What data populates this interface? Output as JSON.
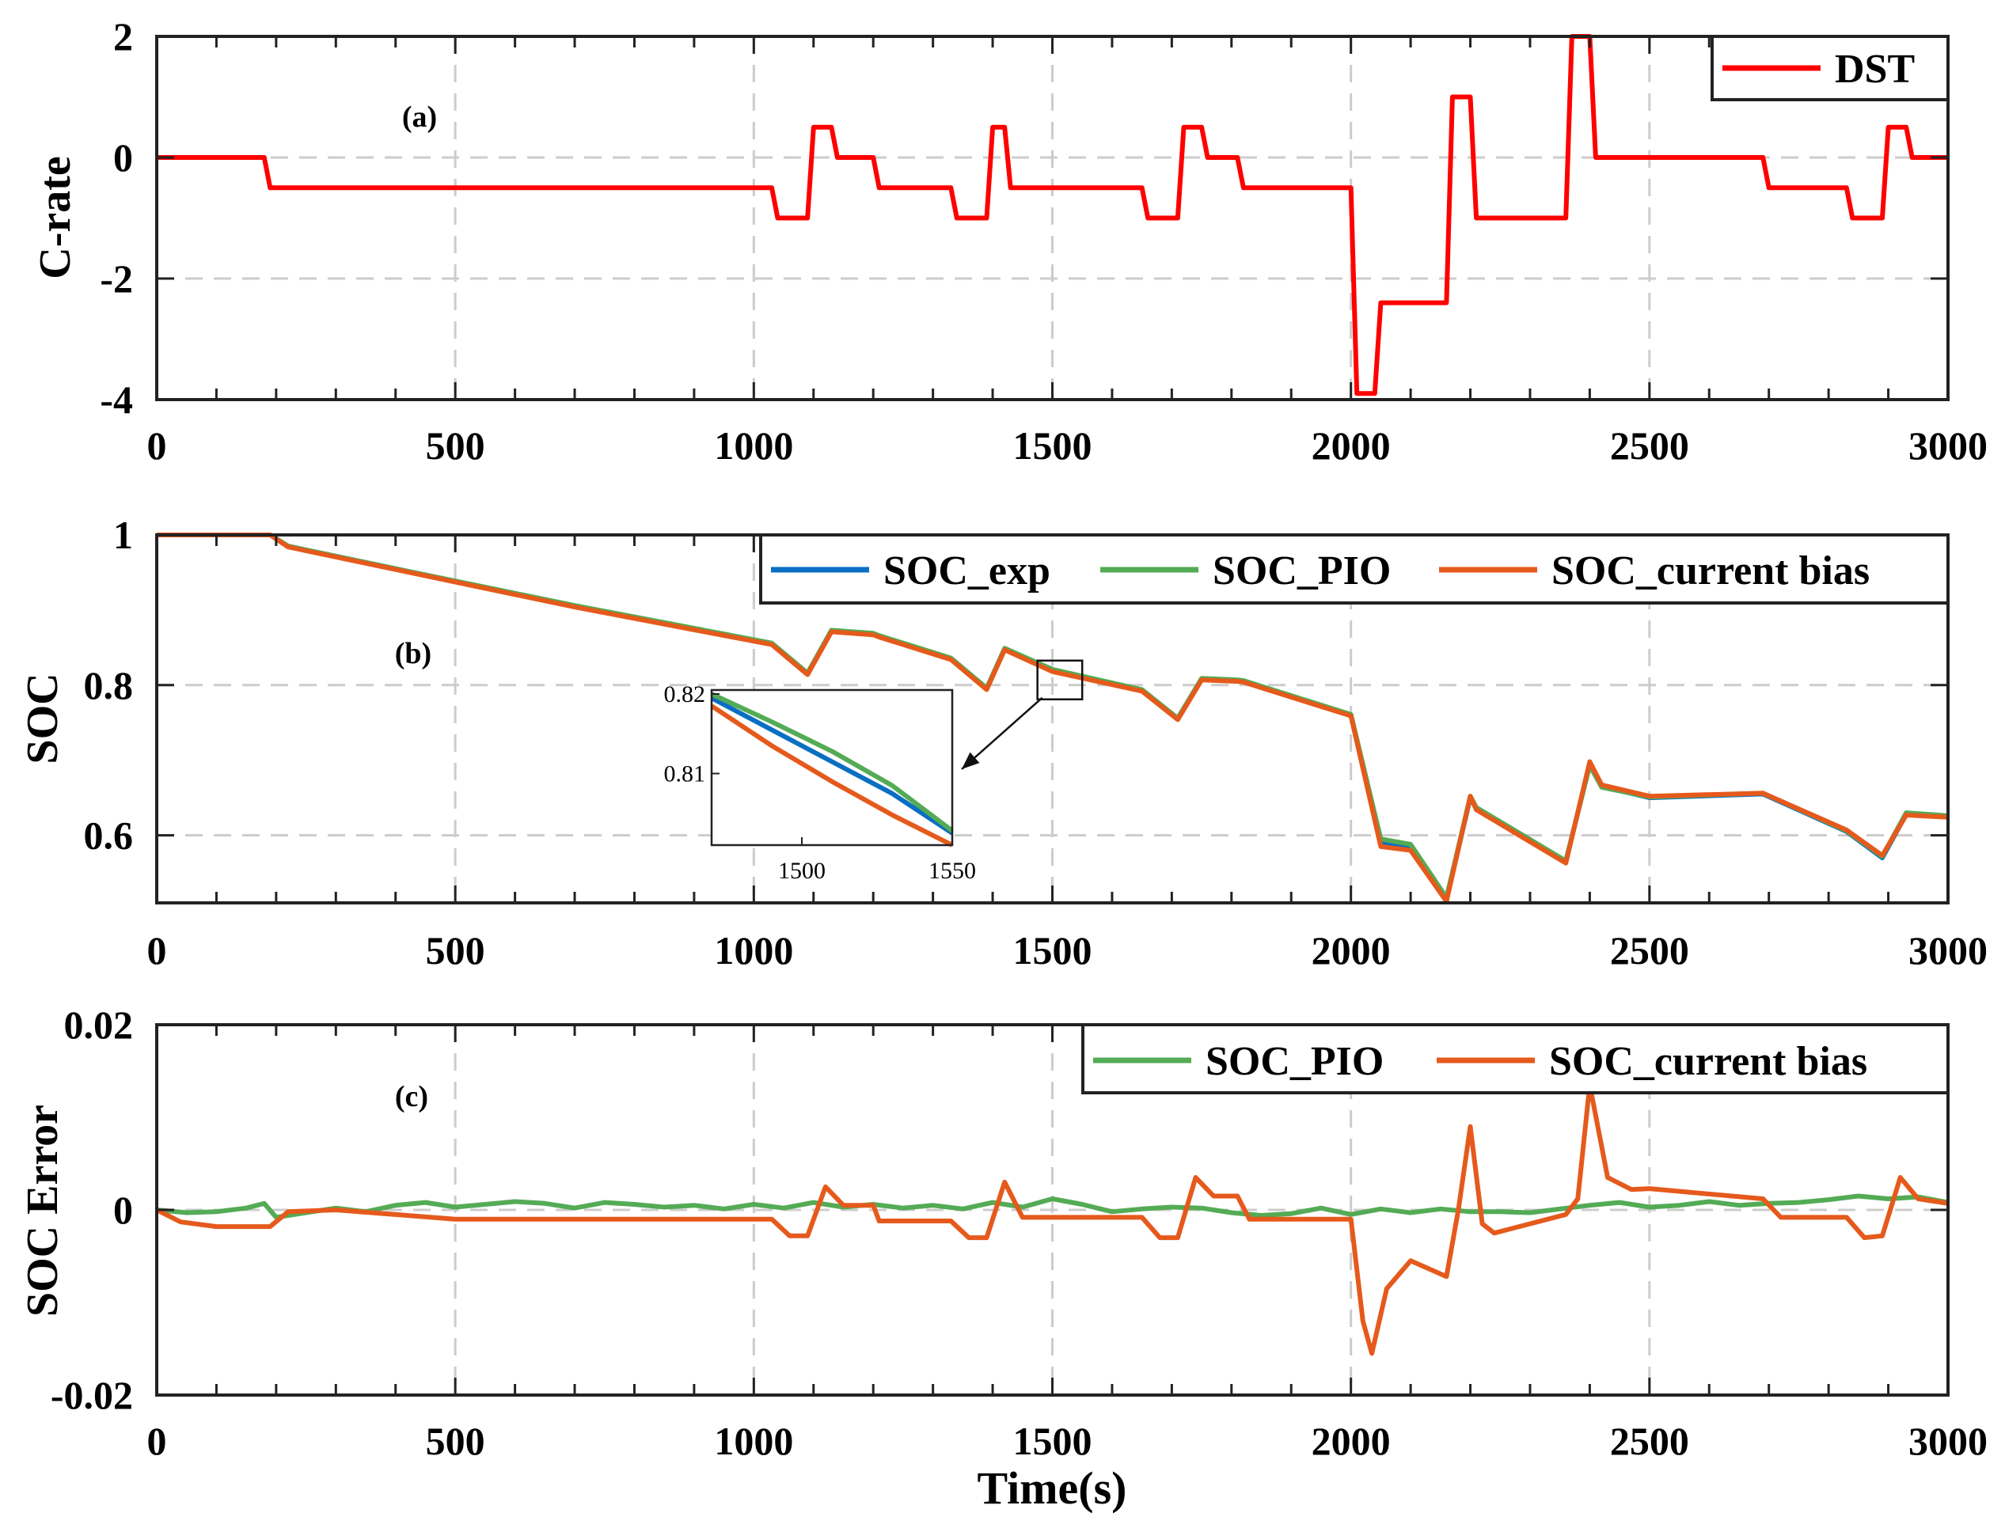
{
  "colors": {
    "dst": "#ff0000",
    "exp": "#0a6fc2",
    "pio": "#54ab55",
    "bias": "#e55a1c",
    "grid": "#cccccc",
    "axis": "#222222"
  },
  "chart_data": [
    {
      "type": "line",
      "panel_label": "(a)",
      "ylabel": "C-rate",
      "xlabel": "",
      "xlim": [
        0,
        3000
      ],
      "ylim": [
        -4,
        2
      ],
      "xticks": [
        0,
        500,
        1000,
        1500,
        2000,
        2500,
        3000
      ],
      "yticks": [
        -4,
        -2,
        0,
        2
      ],
      "xtick_labels": [
        "0",
        "500",
        "1000",
        "1500",
        "2000",
        "2500",
        "3000"
      ],
      "ytick_labels": [
        "-4",
        "-2",
        "0",
        "2"
      ],
      "grid": true,
      "legend_position": "top-right",
      "series": [
        {
          "name": "DST",
          "color": "#ff0000",
          "x": [
            0,
            180,
            190,
            1030,
            1040,
            1090,
            1100,
            1130,
            1140,
            1200,
            1210,
            1330,
            1340,
            1390,
            1400,
            1420,
            1430,
            1650,
            1660,
            1710,
            1720,
            1750,
            1760,
            1810,
            1820,
            2000,
            2010,
            2040,
            2050,
            2160,
            2170,
            2200,
            2210,
            2360,
            2370,
            2400,
            2410,
            2690,
            2700,
            2830,
            2840,
            2890,
            2900,
            2930,
            2940,
            3000
          ],
          "y": [
            0,
            0,
            -0.5,
            -0.5,
            -1,
            -1,
            0.5,
            0.5,
            0,
            0,
            -0.5,
            -0.5,
            -1,
            -1,
            0.5,
            0.5,
            -0.5,
            -0.5,
            -1,
            -1,
            0.5,
            0.5,
            0,
            0,
            -0.5,
            -0.5,
            -3.9,
            -3.9,
            -2.4,
            -2.4,
            1,
            1,
            -1,
            -1,
            2,
            2,
            0,
            0,
            -0.5,
            -0.5,
            -1,
            -1,
            0.5,
            0.5,
            0,
            0
          ]
        }
      ]
    },
    {
      "type": "line",
      "panel_label": "(b)",
      "ylabel": "SOC",
      "xlabel": "",
      "xlim": [
        0,
        3000
      ],
      "ylim": [
        0.51,
        1
      ],
      "xticks": [
        0,
        500,
        1000,
        1500,
        2000,
        2500,
        3000
      ],
      "yticks": [
        0.6,
        0.8,
        1
      ],
      "xtick_labels": [
        "0",
        "500",
        "1000",
        "1500",
        "2000",
        "2500",
        "3000"
      ],
      "ytick_labels": [
        "0.6",
        "0.8",
        "1"
      ],
      "grid": true,
      "legend_position": "top-right",
      "series": [
        {
          "name": "SOC_exp",
          "color": "#0a6fc2",
          "x": [
            0,
            190,
            220,
            400,
            700,
            1030,
            1090,
            1130,
            1200,
            1210,
            1330,
            1390,
            1420,
            1500,
            1650,
            1710,
            1750,
            1810,
            1820,
            2000,
            2050,
            2100,
            2160,
            2200,
            2210,
            2360,
            2400,
            2420,
            2500,
            2690,
            2830,
            2890,
            2930,
            3000
          ],
          "y": [
            1,
            1,
            0.985,
            0.955,
            0.905,
            0.855,
            0.815,
            0.872,
            0.868,
            0.865,
            0.835,
            0.795,
            0.848,
            0.82,
            0.793,
            0.755,
            0.808,
            0.806,
            0.805,
            0.76,
            0.59,
            0.585,
            0.515,
            0.65,
            0.635,
            0.565,
            0.695,
            0.665,
            0.65,
            0.655,
            0.605,
            0.57,
            0.628,
            0.625
          ]
        },
        {
          "name": "SOC_PIO",
          "color": "#54ab55",
          "x": [
            0,
            190,
            220,
            400,
            700,
            1030,
            1090,
            1130,
            1200,
            1210,
            1330,
            1390,
            1420,
            1500,
            1650,
            1710,
            1750,
            1810,
            1820,
            2000,
            2050,
            2100,
            2160,
            2200,
            2210,
            2360,
            2400,
            2420,
            2500,
            2690,
            2830,
            2890,
            2930,
            3000
          ],
          "y": [
            1,
            1,
            0.985,
            0.955,
            0.906,
            0.856,
            0.816,
            0.873,
            0.869,
            0.866,
            0.836,
            0.796,
            0.849,
            0.821,
            0.794,
            0.756,
            0.809,
            0.807,
            0.806,
            0.761,
            0.595,
            0.588,
            0.517,
            0.652,
            0.637,
            0.566,
            0.693,
            0.664,
            0.651,
            0.656,
            0.606,
            0.572,
            0.63,
            0.626
          ]
        },
        {
          "name": "SOC_current bias",
          "color": "#e55a1c",
          "x": [
            0,
            190,
            220,
            400,
            700,
            1030,
            1090,
            1130,
            1200,
            1210,
            1330,
            1390,
            1420,
            1500,
            1650,
            1710,
            1750,
            1810,
            1820,
            2000,
            2050,
            2100,
            2160,
            2200,
            2210,
            2360,
            2400,
            2420,
            2500,
            2690,
            2830,
            2890,
            2930,
            3000
          ],
          "y": [
            1,
            1,
            0.984,
            0.954,
            0.904,
            0.854,
            0.814,
            0.871,
            0.867,
            0.864,
            0.834,
            0.794,
            0.847,
            0.818,
            0.792,
            0.754,
            0.807,
            0.805,
            0.804,
            0.759,
            0.585,
            0.58,
            0.512,
            0.652,
            0.634,
            0.563,
            0.698,
            0.667,
            0.652,
            0.656,
            0.607,
            0.573,
            0.627,
            0.624
          ]
        }
      ],
      "inset": {
        "xlim": [
          1470,
          1550
        ],
        "ylim": [
          0.801,
          0.8205
        ],
        "xticks": [
          1500,
          1550
        ],
        "yticks": [
          0.81,
          0.82
        ],
        "xtick_labels": [
          "1500",
          "1550"
        ],
        "ytick_labels": [
          "0.81",
          "0.82"
        ],
        "zoom_box_x": [
          1475,
          1550
        ],
        "zoom_box_y": [
          0.8,
          0.82
        ],
        "series": [
          {
            "name": "SOC_exp",
            "color": "#0a6fc2",
            "x": [
              1470,
              1490,
              1510,
              1530,
              1550
            ],
            "y": [
              0.8195,
              0.8155,
              0.8115,
              0.8075,
              0.8025
            ]
          },
          {
            "name": "SOC_PIO",
            "color": "#54ab55",
            "x": [
              1470,
              1490,
              1510,
              1530,
              1550
            ],
            "y": [
              0.82,
              0.8165,
              0.8128,
              0.8085,
              0.8028
            ]
          },
          {
            "name": "SOC_current bias",
            "color": "#e55a1c",
            "x": [
              1470,
              1490,
              1510,
              1530,
              1550
            ],
            "y": [
              0.8185,
              0.8135,
              0.809,
              0.8048,
              0.801
            ]
          }
        ]
      }
    },
    {
      "type": "line",
      "panel_label": "(c)",
      "ylabel": "SOC Error",
      "xlabel": "Time(s)",
      "xlim": [
        0,
        3000
      ],
      "ylim": [
        -0.02,
        0.02
      ],
      "xticks": [
        0,
        500,
        1000,
        1500,
        2000,
        2500,
        3000
      ],
      "yticks": [
        -0.02,
        0,
        0.02
      ],
      "xtick_labels": [
        "0",
        "500",
        "1000",
        "1500",
        "2000",
        "2500",
        "3000"
      ],
      "ytick_labels": [
        "-0.02",
        "0",
        "0.02"
      ],
      "grid": true,
      "legend_position": "top-right",
      "series": [
        {
          "name": "SOC_PIO",
          "color": "#54ab55",
          "x": [
            0,
            50,
            100,
            150,
            180,
            200,
            250,
            300,
            350,
            400,
            450,
            500,
            550,
            600,
            650,
            700,
            750,
            800,
            850,
            900,
            950,
            1000,
            1050,
            1100,
            1150,
            1200,
            1250,
            1300,
            1350,
            1400,
            1450,
            1500,
            1550,
            1600,
            1650,
            1700,
            1750,
            1800,
            1850,
            1900,
            1950,
            2000,
            2050,
            2100,
            2150,
            2200,
            2250,
            2300,
            2350,
            2400,
            2450,
            2500,
            2550,
            2600,
            2650,
            2700,
            2750,
            2800,
            2850,
            2900,
            2950,
            3000
          ],
          "y": [
            0,
            -0.0003,
            -0.0002,
            0.0002,
            0.0007,
            -0.0008,
            -0.0003,
            0.0002,
            -0.0002,
            0.0005,
            0.0008,
            0.0003,
            0.0006,
            0.0009,
            0.0007,
            0.0002,
            0.0008,
            0.0006,
            0.0003,
            0.0005,
            0.0001,
            0.0006,
            0.0002,
            0.0008,
            0.0003,
            0.0006,
            0.0002,
            0.0005,
            0.0001,
            0.0008,
            0.0003,
            0.0012,
            0.0006,
            -0.0002,
            0.0001,
            0.0003,
            0.0002,
            -0.0003,
            -0.0006,
            -0.0004,
            0.0002,
            -0.0005,
            0.0001,
            -0.0003,
            0.0001,
            -0.0002,
            -0.0002,
            -0.0003,
            0.0001,
            0.0005,
            0.0008,
            0.0003,
            0.0005,
            0.0009,
            0.0005,
            0.0007,
            0.0008,
            0.0011,
            0.0015,
            0.0012,
            0.0014,
            0.0008
          ]
        },
        {
          "name": "SOC_current bias",
          "color": "#e55a1c",
          "x": [
            0,
            40,
            100,
            190,
            220,
            300,
            500,
            1030,
            1060,
            1090,
            1120,
            1150,
            1200,
            1210,
            1330,
            1360,
            1390,
            1420,
            1450,
            1650,
            1680,
            1710,
            1740,
            1770,
            1810,
            1830,
            2000,
            2020,
            2035,
            2060,
            2100,
            2160,
            2180,
            2200,
            2220,
            2240,
            2360,
            2380,
            2400,
            2430,
            2470,
            2500,
            2690,
            2720,
            2830,
            2860,
            2890,
            2920,
            2950,
            3000
          ],
          "y": [
            0,
            -0.0013,
            -0.0018,
            -0.0018,
            -0.0002,
            0,
            -0.001,
            -0.001,
            -0.0028,
            -0.0028,
            0.0025,
            0.0005,
            0.0005,
            -0.0012,
            -0.0012,
            -0.003,
            -0.003,
            0.003,
            -0.0008,
            -0.0008,
            -0.003,
            -0.003,
            0.0035,
            0.0015,
            0.0015,
            -0.001,
            -0.001,
            -0.012,
            -0.0155,
            -0.0085,
            -0.0055,
            -0.0072,
            0.0,
            0.009,
            -0.0015,
            -0.0025,
            -0.0005,
            0.0012,
            0.0135,
            0.0035,
            0.0022,
            0.0023,
            0.0012,
            -0.0008,
            -0.0008,
            -0.003,
            -0.0028,
            0.0035,
            0.0012,
            0.0007
          ]
        }
      ]
    }
  ]
}
